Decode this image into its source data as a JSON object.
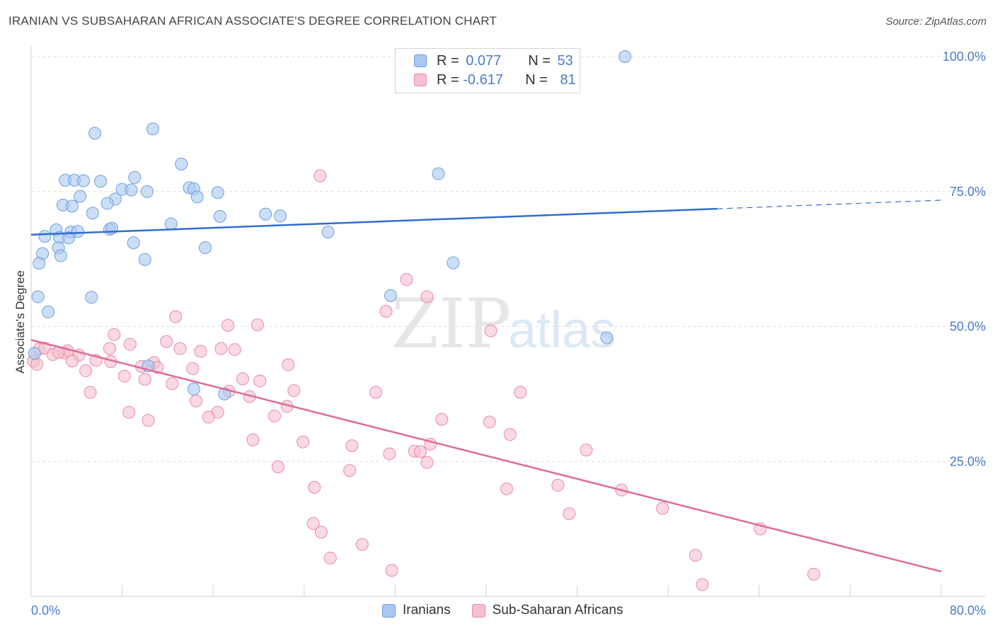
{
  "title": "IRANIAN VS SUBSAHARAN AFRICAN ASSOCIATE'S DEGREE CORRELATION CHART",
  "source": "Source: ZipAtlas.com",
  "watermark": {
    "zip": "ZIP",
    "atlas": "atlas"
  },
  "legend": {
    "rows": [
      {
        "r_label": "R =",
        "r_value": "0.077",
        "n_label": "N =",
        "n_value": "53",
        "color": "#a9c8f0",
        "border": "#6f9fdc"
      },
      {
        "r_label": "R =",
        "r_value": "-0.617",
        "n_label": "N =",
        "n_value": "81",
        "color": "#f7c0cf",
        "border": "#e88aa6"
      }
    ]
  },
  "bottom_legend": {
    "series1": "Iranians",
    "series2": "Sub-Saharan Africans"
  },
  "chart_data": {
    "type": "scatter",
    "title": "IRANIAN VS SUBSAHARAN AFRICAN ASSOCIATE'S DEGREE CORRELATION CHART",
    "xlabel": "",
    "ylabel": "Associate's Degree",
    "xlim": [
      0,
      80
    ],
    "ylim": [
      0,
      100
    ],
    "x_tick_labels": [
      "0.0%",
      "80.0%"
    ],
    "y_tick_labels": [
      "100.0%",
      "75.0%",
      "50.0%",
      "25.0%"
    ],
    "y_ticks": [
      100,
      75,
      50,
      25
    ],
    "grid": true,
    "legend_position": "top-center",
    "series": [
      {
        "name": "Iranians",
        "color": "#a9c8f0",
        "stroke": "#6f9fdc",
        "line_color": "#2f6fcc",
        "trend": {
          "x": [
            0,
            60.3
          ],
          "y": [
            67.0,
            71.8
          ],
          "dashed_to": [
            80,
            73.4
          ]
        },
        "points": [
          [
            52.2,
            100.0
          ],
          [
            5.6,
            85.8
          ],
          [
            10.7,
            86.6
          ],
          [
            13.2,
            80.1
          ],
          [
            35.8,
            78.3
          ],
          [
            3.0,
            77.1
          ],
          [
            3.8,
            77.1
          ],
          [
            4.6,
            77.0
          ],
          [
            6.1,
            76.9
          ],
          [
            9.1,
            77.6
          ],
          [
            8.0,
            75.4
          ],
          [
            8.8,
            75.3
          ],
          [
            10.2,
            75.0
          ],
          [
            13.9,
            75.7
          ],
          [
            14.3,
            75.5
          ],
          [
            16.4,
            74.8
          ],
          [
            14.6,
            74.0
          ],
          [
            4.3,
            74.1
          ],
          [
            7.4,
            73.6
          ],
          [
            6.7,
            72.8
          ],
          [
            2.8,
            72.5
          ],
          [
            3.6,
            72.3
          ],
          [
            5.4,
            71.0
          ],
          [
            16.6,
            70.4
          ],
          [
            20.6,
            70.8
          ],
          [
            21.9,
            70.5
          ],
          [
            12.3,
            69.0
          ],
          [
            6.9,
            68.0
          ],
          [
            7.1,
            68.2
          ],
          [
            26.1,
            67.5
          ],
          [
            3.5,
            67.5
          ],
          [
            4.1,
            67.6
          ],
          [
            2.2,
            67.9
          ],
          [
            1.2,
            66.7
          ],
          [
            2.5,
            66.5
          ],
          [
            3.3,
            66.4
          ],
          [
            9.0,
            65.5
          ],
          [
            2.4,
            64.6
          ],
          [
            15.3,
            64.6
          ],
          [
            1.0,
            63.5
          ],
          [
            2.6,
            63.1
          ],
          [
            10.0,
            62.4
          ],
          [
            0.7,
            61.7
          ],
          [
            37.1,
            61.8
          ],
          [
            0.6,
            55.5
          ],
          [
            5.3,
            55.4
          ],
          [
            31.6,
            55.7
          ],
          [
            1.5,
            52.7
          ],
          [
            50.6,
            47.9
          ],
          [
            0.3,
            45.0
          ],
          [
            10.3,
            42.7
          ],
          [
            14.3,
            38.4
          ],
          [
            17.0,
            37.5
          ]
        ]
      },
      {
        "name": "Sub-Saharan Africans",
        "color": "#f7c0cf",
        "stroke": "#e88aa6",
        "line_color": "#e06b96",
        "trend": {
          "x": [
            0,
            80
          ],
          "y": [
            47.5,
            4.6
          ]
        },
        "points": [
          [
            25.4,
            77.9
          ],
          [
            33.0,
            58.7
          ],
          [
            34.8,
            55.5
          ],
          [
            31.2,
            52.8
          ],
          [
            12.7,
            51.8
          ],
          [
            19.9,
            50.3
          ],
          [
            17.3,
            50.2
          ],
          [
            40.4,
            49.2
          ],
          [
            7.3,
            48.5
          ],
          [
            11.9,
            47.2
          ],
          [
            8.7,
            46.7
          ],
          [
            6.9,
            45.9
          ],
          [
            13.1,
            45.9
          ],
          [
            16.7,
            45.9
          ],
          [
            17.9,
            45.7
          ],
          [
            14.9,
            45.4
          ],
          [
            0.7,
            45.8
          ],
          [
            1.2,
            46.0
          ],
          [
            2.9,
            45.1
          ],
          [
            3.2,
            45.5
          ],
          [
            1.9,
            44.8
          ],
          [
            2.4,
            45.2
          ],
          [
            4.2,
            44.7
          ],
          [
            0.2,
            43.6
          ],
          [
            3.6,
            43.6
          ],
          [
            5.7,
            43.7
          ],
          [
            7.0,
            43.5
          ],
          [
            10.8,
            43.3
          ],
          [
            9.7,
            42.6
          ],
          [
            11.1,
            42.4
          ],
          [
            14.2,
            42.2
          ],
          [
            22.6,
            42.9
          ],
          [
            4.8,
            41.8
          ],
          [
            8.2,
            40.8
          ],
          [
            10.0,
            40.2
          ],
          [
            18.6,
            40.3
          ],
          [
            20.1,
            39.9
          ],
          [
            12.4,
            39.4
          ],
          [
            5.2,
            37.8
          ],
          [
            17.4,
            38.0
          ],
          [
            23.1,
            38.1
          ],
          [
            30.3,
            37.8
          ],
          [
            43.0,
            37.8
          ],
          [
            19.2,
            37.0
          ],
          [
            14.5,
            36.2
          ],
          [
            22.5,
            35.2
          ],
          [
            8.6,
            34.1
          ],
          [
            16.4,
            34.1
          ],
          [
            21.4,
            33.4
          ],
          [
            10.3,
            32.6
          ],
          [
            15.6,
            33.2
          ],
          [
            36.1,
            32.8
          ],
          [
            40.3,
            32.3
          ],
          [
            42.1,
            30.0
          ],
          [
            19.5,
            29.0
          ],
          [
            23.9,
            28.6
          ],
          [
            35.1,
            28.2
          ],
          [
            28.2,
            27.9
          ],
          [
            33.7,
            26.9
          ],
          [
            34.2,
            26.8
          ],
          [
            31.5,
            26.4
          ],
          [
            48.8,
            27.1
          ],
          [
            34.8,
            24.8
          ],
          [
            21.7,
            24.0
          ],
          [
            28.0,
            23.3
          ],
          [
            24.9,
            20.2
          ],
          [
            41.8,
            19.9
          ],
          [
            46.3,
            20.6
          ],
          [
            51.9,
            19.7
          ],
          [
            55.5,
            16.3
          ],
          [
            47.3,
            15.3
          ],
          [
            24.8,
            13.5
          ],
          [
            25.5,
            11.9
          ],
          [
            64.1,
            12.5
          ],
          [
            29.1,
            9.6
          ],
          [
            26.3,
            7.1
          ],
          [
            58.4,
            7.6
          ],
          [
            31.7,
            4.8
          ],
          [
            68.8,
            4.1
          ],
          [
            59.0,
            2.2
          ],
          [
            0.5,
            43.0
          ]
        ]
      }
    ]
  }
}
